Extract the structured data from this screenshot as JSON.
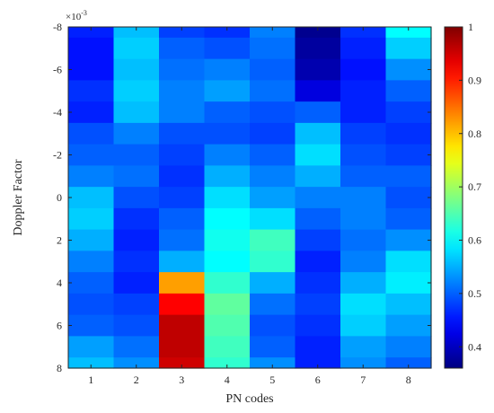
{
  "chart_data": {
    "type": "heatmap",
    "xlabel": "PN codes",
    "ylabel": "Doppler Factor",
    "y_multiplier_label": "×10",
    "y_multiplier_exponent": "-3",
    "x_categories": [
      1,
      2,
      3,
      4,
      5,
      6,
      7,
      8
    ],
    "x_tick_labels": [
      "1",
      "2",
      "3",
      "4",
      "5",
      "6",
      "7",
      "8"
    ],
    "y_ticks": [
      -8,
      -6,
      -4,
      -2,
      0,
      2,
      4,
      6,
      8
    ],
    "y_tick_labels": [
      "-8",
      "-6",
      "-4",
      "-2",
      "0",
      "2",
      "4",
      "6",
      "8"
    ],
    "ylim": [
      -8,
      8
    ],
    "y_direction": "reversed",
    "y_unit_scale": 0.001,
    "colormap": "jet",
    "clim": [
      0.36,
      1.0
    ],
    "colorbar_ticks": [
      0.4,
      0.5,
      0.6,
      0.7,
      0.8,
      0.9,
      1
    ],
    "colorbar_tick_labels": [
      "0.4",
      "0.5",
      "0.6",
      "0.7",
      "0.8",
      "0.9",
      "1"
    ],
    "colorbar_placement": "right",
    "grid": false,
    "y_values": [
      -8,
      -7,
      -6,
      -5,
      -4,
      -3,
      -2,
      -1,
      0,
      1,
      2,
      3,
      4,
      5,
      6,
      7,
      8
    ],
    "columns": [
      {
        "code": 1,
        "values": [
          0.46,
          0.45,
          0.45,
          0.47,
          0.46,
          0.49,
          0.5,
          0.52,
          0.56,
          0.57,
          0.55,
          0.52,
          0.5,
          0.49,
          0.5,
          0.54,
          0.56
        ]
      },
      {
        "code": 2,
        "values": [
          0.56,
          0.57,
          0.56,
          0.57,
          0.56,
          0.52,
          0.5,
          0.51,
          0.49,
          0.47,
          0.46,
          0.47,
          0.46,
          0.48,
          0.49,
          0.51,
          0.53
        ]
      },
      {
        "code": 3,
        "values": [
          0.48,
          0.5,
          0.51,
          0.52,
          0.52,
          0.49,
          0.48,
          0.47,
          0.48,
          0.5,
          0.51,
          0.55,
          0.82,
          0.92,
          0.96,
          0.96,
          0.95
        ]
      },
      {
        "code": 4,
        "values": [
          0.47,
          0.49,
          0.52,
          0.54,
          0.5,
          0.49,
          0.52,
          0.55,
          0.58,
          0.6,
          0.61,
          0.6,
          0.63,
          0.66,
          0.65,
          0.64,
          0.63
        ]
      },
      {
        "code": 5,
        "values": [
          0.52,
          0.51,
          0.5,
          0.51,
          0.49,
          0.48,
          0.5,
          0.52,
          0.54,
          0.58,
          0.64,
          0.63,
          0.55,
          0.51,
          0.49,
          0.5,
          0.53
        ]
      },
      {
        "code": 6,
        "values": [
          0.37,
          0.38,
          0.39,
          0.42,
          0.5,
          0.56,
          0.58,
          0.55,
          0.52,
          0.5,
          0.48,
          0.46,
          0.47,
          0.48,
          0.47,
          0.46,
          0.46
        ]
      },
      {
        "code": 7,
        "values": [
          0.47,
          0.46,
          0.45,
          0.46,
          0.46,
          0.48,
          0.49,
          0.5,
          0.52,
          0.52,
          0.51,
          0.52,
          0.55,
          0.58,
          0.57,
          0.54,
          0.53
        ]
      },
      {
        "code": 8,
        "values": [
          0.6,
          0.57,
          0.53,
          0.5,
          0.48,
          0.47,
          0.48,
          0.5,
          0.49,
          0.5,
          0.53,
          0.58,
          0.59,
          0.56,
          0.54,
          0.52,
          0.5
        ]
      }
    ]
  }
}
